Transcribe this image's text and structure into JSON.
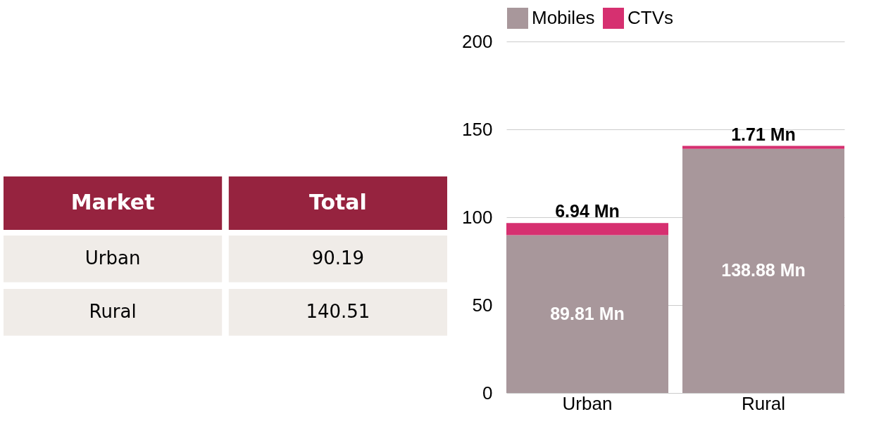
{
  "chart_data": [
    {
      "type": "other",
      "categories": [
        "Urban",
        "Rural"
      ],
      "values": [
        90.19,
        140.51
      ],
      "data_labels": true,
      "annotations": [
        "Market",
        "Total"
      ]
    },
    {
      "type": "bar",
      "stacked": true,
      "categories": [
        "Urban",
        "Rural"
      ],
      "series": [
        {
          "name": "Mobiles",
          "color": "#a8979b",
          "values": [
            89.81,
            138.88
          ],
          "value_labels": [
            "89.81 Mn",
            "138.88 Mn"
          ]
        },
        {
          "name": "CTVs",
          "color": "#d63070",
          "values": [
            6.94,
            1.71
          ],
          "value_labels": [
            "6.94 Mn",
            "1.71 Mn"
          ]
        }
      ],
      "ylim": [
        0,
        200
      ],
      "yticks": [
        0,
        50,
        100,
        150,
        200
      ],
      "grid": "y",
      "legend": "top"
    }
  ]
}
